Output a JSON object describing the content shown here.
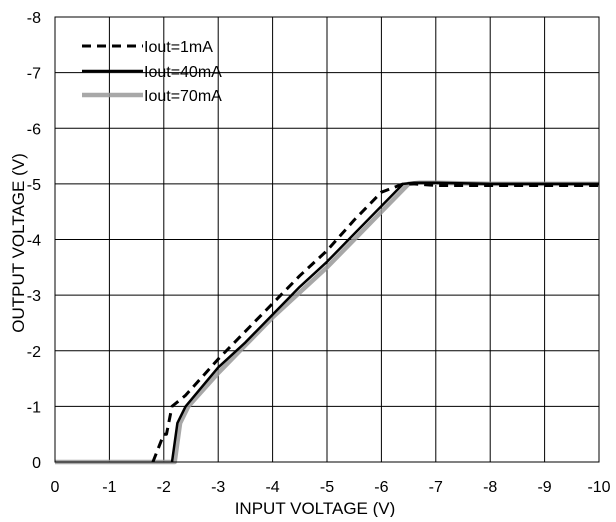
{
  "chart_data": {
    "type": "line",
    "title": "",
    "xlabel": "INPUT VOLTAGE  (V)",
    "ylabel": "OUTPUT VOLTAGE  (V)",
    "xlim": [
      0,
      -10
    ],
    "ylim": [
      0,
      -8
    ],
    "x_ticks": [
      0,
      -1,
      -2,
      -3,
      -4,
      -5,
      -6,
      -7,
      -8,
      -9,
      -10
    ],
    "y_ticks": [
      0,
      -1,
      -2,
      -3,
      -4,
      -5,
      -6,
      -7,
      -8
    ],
    "grid": true,
    "legend_position": "top-left",
    "series": [
      {
        "name": "Iout=1mA",
        "color": "#000000",
        "style": "dashed",
        "x": [
          -1.8,
          -2.0,
          -2.05,
          -2.15,
          -2.4,
          -3.0,
          -3.5,
          -4.0,
          -4.5,
          -5.0,
          -5.5,
          -6.0,
          -6.4,
          -6.6,
          -7.0,
          -7.5,
          -8.0,
          -8.5,
          -9.0,
          -9.5,
          -10.0
        ],
        "y": [
          0,
          -0.5,
          -0.5,
          -1.0,
          -1.2,
          -1.85,
          -2.35,
          -2.85,
          -3.35,
          -3.8,
          -4.35,
          -4.85,
          -5.0,
          -5.0,
          -4.97,
          -4.97,
          -4.97,
          -4.97,
          -4.97,
          -4.97,
          -4.97
        ]
      },
      {
        "name": "Iout=40mA",
        "color": "#000000",
        "style": "solid",
        "x": [
          -2.15,
          -2.25,
          -2.4,
          -3.0,
          -3.5,
          -4.0,
          -4.5,
          -5.0,
          -5.5,
          -6.0,
          -6.4,
          -6.6,
          -7.0,
          -8.0,
          -9.0,
          -10.0
        ],
        "y": [
          0,
          -0.7,
          -1.0,
          -1.7,
          -2.15,
          -2.65,
          -3.15,
          -3.6,
          -4.1,
          -4.6,
          -5.0,
          -5.02,
          -5.02,
          -5.0,
          -5.0,
          -5.0
        ]
      },
      {
        "name": "Iout=70mA",
        "color": "#999999",
        "style": "thick-gray",
        "x": [
          0,
          -0.9,
          -2.2,
          -2.3,
          -2.45,
          -3.0,
          -3.5,
          -4.0,
          -4.5,
          -5.0,
          -5.5,
          -6.0,
          -6.5,
          -6.7,
          -7.0,
          -8.0,
          -9.0,
          -10.0
        ],
        "y": [
          0,
          0,
          0,
          -0.7,
          -1.0,
          -1.6,
          -2.1,
          -2.6,
          -3.05,
          -3.5,
          -4.0,
          -4.5,
          -5.0,
          -5.02,
          -5.02,
          -5.0,
          -5.0,
          -5.0
        ]
      }
    ]
  }
}
